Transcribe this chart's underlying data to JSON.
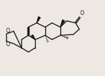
{
  "bg_color": "#ede8e2",
  "bond_color": "#1a1a1a",
  "bond_lw": 1.0,
  "fig_width": 1.53,
  "fig_height": 1.12,
  "dpi": 100,
  "xlim": [
    0,
    10
  ],
  "ylim": [
    0,
    7
  ]
}
